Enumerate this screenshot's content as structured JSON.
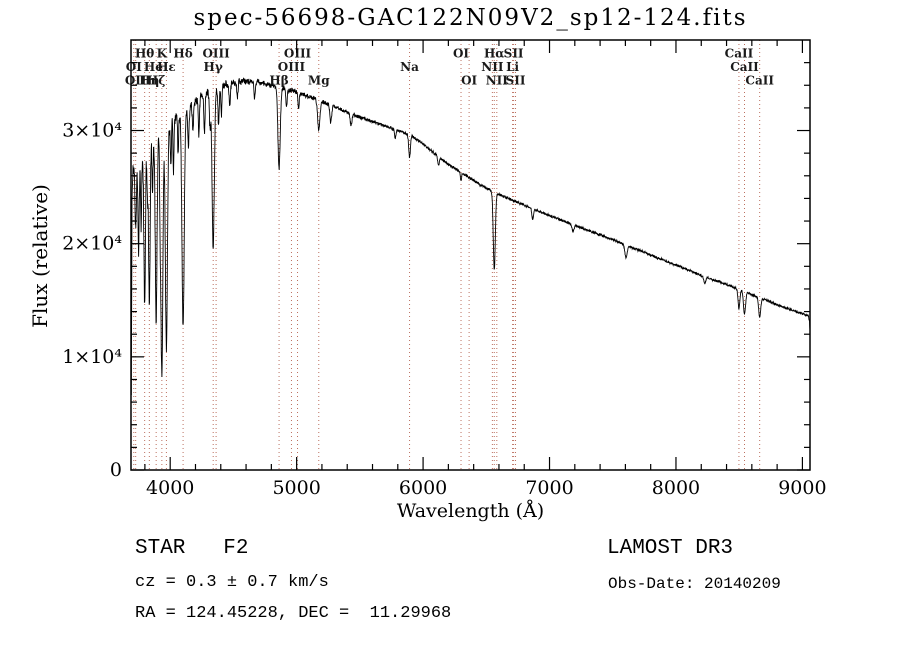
{
  "figure": {
    "background": "#ffffff",
    "annotations": {
      "class_label": "STAR   F2",
      "survey": "LAMOST DR3",
      "cz": "cz = 0.3 ± 0.7 km/s",
      "obs_date": "Obs-Date: 20140209",
      "ra_dec": "RA = 124.45228, DEC =  11.29968"
    }
  },
  "chart_data": {
    "type": "line",
    "title": "spec-56698-GAC122N09V2_sp12-124.fits",
    "xlabel": "Wavelength (Å)",
    "ylabel": "Flux (relative)",
    "xlim": [
      3690,
      9060
    ],
    "ylim": [
      0,
      38000
    ],
    "grid": false,
    "line_color": "#000000",
    "marker_color": "#b4604e",
    "label_color": "#1a1a1a",
    "x_ticks": [
      {
        "value": 4000,
        "label": "4000"
      },
      {
        "value": 5000,
        "label": "5000"
      },
      {
        "value": 6000,
        "label": "6000"
      },
      {
        "value": 7000,
        "label": "7000"
      },
      {
        "value": 8000,
        "label": "8000"
      },
      {
        "value": 9000,
        "label": "9000"
      }
    ],
    "x_minor_step": 200,
    "y_ticks": [
      {
        "value": 0,
        "label": "0"
      },
      {
        "value": 10000,
        "label": "1×10⁴"
      },
      {
        "value": 20000,
        "label": "2×10⁴"
      },
      {
        "value": 30000,
        "label": "3×10⁴"
      }
    ],
    "y_minor_step": 2000,
    "spectral_lines": [
      {
        "label": "Hθ",
        "wavelength": 3798,
        "row": 1
      },
      {
        "label": "K",
        "wavelength": 3934,
        "row": 1
      },
      {
        "label": "Hδ",
        "wavelength": 4102,
        "row": 1
      },
      {
        "label": "OIII",
        "wavelength": 4363,
        "row": 1
      },
      {
        "label": "OIII",
        "wavelength": 5007,
        "row": 1
      },
      {
        "label": "OI",
        "wavelength": 6300,
        "row": 1
      },
      {
        "label": "Hα",
        "wavelength": 6563,
        "row": 1
      },
      {
        "label": "SII",
        "wavelength": 6716,
        "row": 1
      },
      {
        "label": "CaII",
        "wavelength": 8498,
        "row": 1
      },
      {
        "label": "OI",
        "wavelength": 3712,
        "row": 2
      },
      {
        "label": "HeI",
        "wavelength": 3889,
        "row": 2
      },
      {
        "label": "Hε",
        "wavelength": 3970,
        "row": 2
      },
      {
        "label": "Hγ",
        "wavelength": 4340,
        "row": 2
      },
      {
        "label": "OIII",
        "wavelength": 4959,
        "row": 2
      },
      {
        "label": "Na",
        "wavelength": 5893,
        "row": 2
      },
      {
        "label": "NII",
        "wavelength": 6548,
        "row": 2
      },
      {
        "label": "Li",
        "wavelength": 6708,
        "row": 2
      },
      {
        "label": "CaII",
        "wavelength": 8542,
        "row": 2
      },
      {
        "label": "OII",
        "wavelength": 3727,
        "row": 3
      },
      {
        "label": "Hη",
        "wavelength": 3835,
        "row": 3
      },
      {
        "label": "Hζ",
        "wavelength": 3889,
        "row": 3
      },
      {
        "label": "Hβ",
        "wavelength": 4861,
        "row": 3
      },
      {
        "label": "Mg",
        "wavelength": 5175,
        "row": 3
      },
      {
        "label": "OI",
        "wavelength": 6364,
        "row": 3
      },
      {
        "label": "NII",
        "wavelength": 6583,
        "row": 3
      },
      {
        "label": "SII",
        "wavelength": 6731,
        "row": 3
      },
      {
        "label": "CaII",
        "wavelength": 8662,
        "row": 3
      }
    ],
    "spectrum_model": {
      "sample_step": 2,
      "continuum_points": [
        [
          3690,
          1500
        ],
        [
          3694,
          12000
        ],
        [
          3698,
          24500
        ],
        [
          3706,
          26300
        ],
        [
          3730,
          26900
        ],
        [
          3770,
          27700
        ],
        [
          3820,
          28700
        ],
        [
          3870,
          29300
        ],
        [
          3920,
          29900
        ],
        [
          3970,
          30300
        ],
        [
          4030,
          31000
        ],
        [
          4120,
          31900
        ],
        [
          4250,
          33000
        ],
        [
          4400,
          33900
        ],
        [
          4550,
          34350
        ],
        [
          4700,
          34300
        ],
        [
          4850,
          33900
        ],
        [
          5000,
          33400
        ],
        [
          5150,
          32800
        ],
        [
          5300,
          32100
        ],
        [
          5450,
          31400
        ],
        [
          5600,
          30800
        ],
        [
          5750,
          30200
        ],
        [
          5900,
          29600
        ],
        [
          6000,
          28800
        ],
        [
          6100,
          27900
        ],
        [
          6200,
          27000
        ],
        [
          6300,
          26300
        ],
        [
          6400,
          25600
        ],
        [
          6500,
          24900
        ],
        [
          6650,
          24100
        ],
        [
          6800,
          23400
        ],
        [
          7000,
          22500
        ],
        [
          7200,
          21600
        ],
        [
          7400,
          20800
        ],
        [
          7600,
          19900
        ],
        [
          7800,
          19000
        ],
        [
          8000,
          18100
        ],
        [
          8200,
          17200
        ],
        [
          8400,
          16400
        ],
        [
          8600,
          15500
        ],
        [
          8800,
          14600
        ],
        [
          8950,
          14000
        ],
        [
          9030,
          13700
        ],
        [
          9048,
          13600
        ],
        [
          9056,
          13100
        ],
        [
          9060,
          12300
        ]
      ],
      "absorption_lines": [
        [
          3727,
          5500,
          5
        ],
        [
          3750,
          7500,
          5
        ],
        [
          3770,
          6500,
          4
        ],
        [
          3798,
          14000,
          6
        ],
        [
          3820,
          4000,
          4
        ],
        [
          3835,
          14500,
          6
        ],
        [
          3860,
          4500,
          4
        ],
        [
          3889,
          16500,
          7
        ],
        [
          3920,
          5000,
          4
        ],
        [
          3934,
          21500,
          8
        ],
        [
          3970,
          19500,
          8
        ],
        [
          4005,
          4000,
          4
        ],
        [
          4026,
          4500,
          4
        ],
        [
          4063,
          3500,
          4
        ],
        [
          4102,
          19000,
          9
        ],
        [
          4144,
          3500,
          5
        ],
        [
          4180,
          2500,
          5
        ],
        [
          4227,
          3500,
          4
        ],
        [
          4271,
          3000,
          5
        ],
        [
          4315,
          3000,
          5
        ],
        [
          4340,
          13800,
          9
        ],
        [
          4383,
          3200,
          5
        ],
        [
          4405,
          2600,
          4
        ],
        [
          4471,
          2000,
          5
        ],
        [
          4531,
          1500,
          5
        ],
        [
          4668,
          1500,
          5
        ],
        [
          4861,
          7200,
          9
        ],
        [
          4920,
          1600,
          5
        ],
        [
          5015,
          1400,
          5
        ],
        [
          5175,
          2600,
          9
        ],
        [
          5270,
          1500,
          7
        ],
        [
          5430,
          1000,
          7
        ],
        [
          5780,
          800,
          6
        ],
        [
          5893,
          2000,
          7
        ],
        [
          6122,
          800,
          6
        ],
        [
          6300,
          700,
          5
        ],
        [
          6563,
          6800,
          8
        ],
        [
          6867,
          900,
          7
        ],
        [
          7186,
          600,
          8
        ],
        [
          7605,
          1100,
          9
        ],
        [
          8227,
          600,
          8
        ],
        [
          8498,
          1700,
          7
        ],
        [
          8542,
          2000,
          8
        ],
        [
          8662,
          1800,
          8
        ]
      ],
      "noise": {
        "base": 130,
        "extra": 900,
        "scale": 700,
        "seed": 7
      }
    }
  }
}
